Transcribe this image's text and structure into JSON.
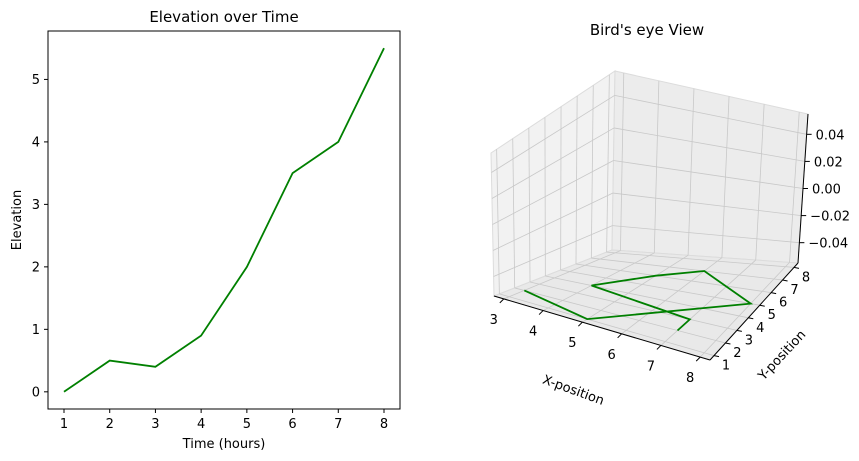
{
  "chart_data": [
    {
      "type": "line",
      "title": "Elevation over Time",
      "xlabel": "Time (hours)",
      "ylabel": "Elevation",
      "x": [
        1,
        2,
        3,
        4,
        5,
        6,
        7,
        8
      ],
      "series": [
        {
          "values": [
            0,
            0.5,
            0.4,
            0.9,
            2.0,
            3.5,
            4.0,
            5.5
          ],
          "color": "#008000"
        }
      ],
      "xlim": [
        0.65,
        8.35
      ],
      "ylim": [
        -0.275,
        5.775
      ],
      "xticks": [
        "1",
        "2",
        "3",
        "4",
        "5",
        "6",
        "7",
        "8"
      ],
      "yticks": [
        "0",
        "1",
        "2",
        "3",
        "4",
        "5"
      ],
      "grid": false
    },
    {
      "type": "line3d",
      "title": "Bird's eye View",
      "xlabel": "X-position",
      "ylabel": "Y-position",
      "zlabel": "",
      "xticks": [
        "3",
        "4",
        "5",
        "6",
        "7",
        "8"
      ],
      "yticks": [
        "1",
        "2",
        "3",
        "4",
        "5",
        "6",
        "7",
        "8"
      ],
      "zticks": [
        "−0.04",
        "−0.02",
        "0.00",
        "0.02",
        "0.04"
      ],
      "series": [
        {
          "color": "#008000",
          "points": [
            [
              3,
              2,
              0
            ],
            [
              5,
              1,
              0
            ],
            [
              8,
              5,
              0
            ],
            [
              6,
              7,
              0
            ],
            [
              5,
              6,
              0
            ],
            [
              4,
              4,
              0
            ],
            [
              7,
              3,
              0
            ],
            [
              7,
              2,
              0
            ]
          ]
        }
      ],
      "grid": true
    }
  ]
}
